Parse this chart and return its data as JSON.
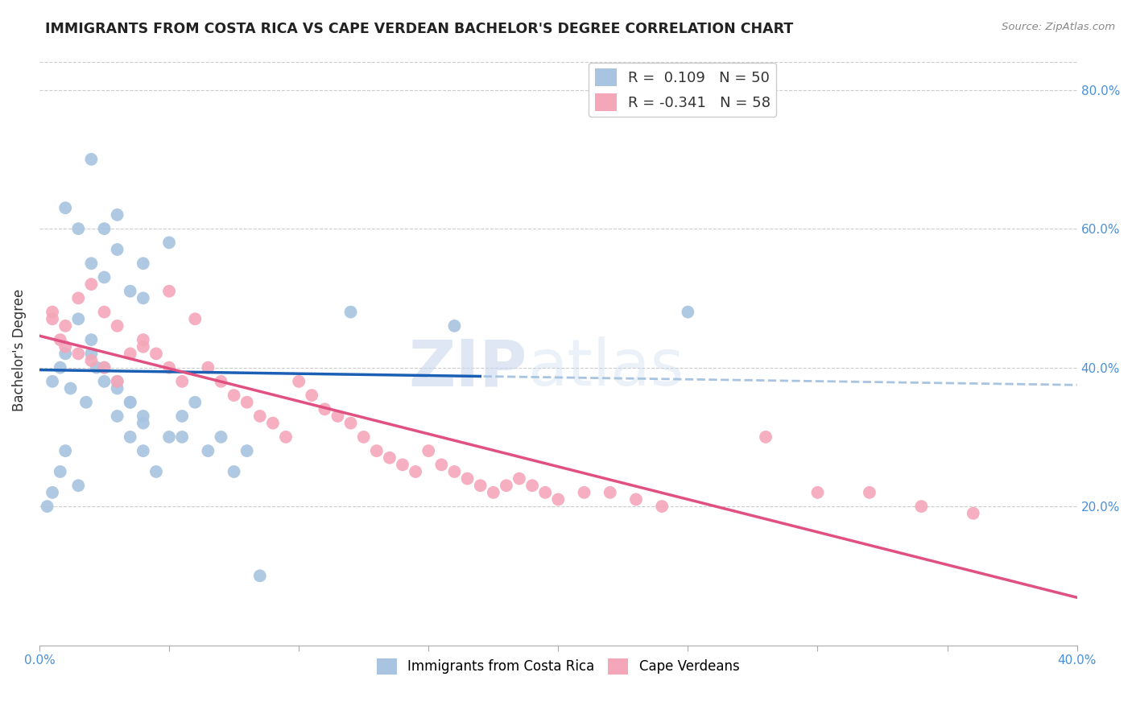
{
  "title": "IMMIGRANTS FROM COSTA RICA VS CAPE VERDEAN BACHELOR'S DEGREE CORRELATION CHART",
  "source": "Source: ZipAtlas.com",
  "ylabel": "Bachelor's Degree",
  "r_costa_rica": 0.109,
  "n_costa_rica": 50,
  "r_cape_verdean": -0.341,
  "n_cape_verdean": 58,
  "color_costa_rica": "#a8c4e0",
  "color_cape_verdean": "#f4a7b9",
  "line_color_costa_rica": "#1a5fb4",
  "line_color_cape_verdean": "#e05080",
  "line_dashed_color": "#a8c4e0",
  "watermark_zip": "ZIP",
  "watermark_atlas": "atlas",
  "xlim": [
    0.0,
    0.4
  ],
  "ylim": [
    0.0,
    0.85
  ],
  "costa_rica_points_x": [
    0.02,
    0.03,
    0.04,
    0.05,
    0.035,
    0.025,
    0.03,
    0.04,
    0.02,
    0.01,
    0.015,
    0.025,
    0.015,
    0.01,
    0.005,
    0.008,
    0.012,
    0.018,
    0.022,
    0.03,
    0.035,
    0.04,
    0.05,
    0.055,
    0.06,
    0.07,
    0.08,
    0.12,
    0.16,
    0.02,
    0.025,
    0.03,
    0.035,
    0.04,
    0.045,
    0.015,
    0.01,
    0.008,
    0.005,
    0.003,
    0.02,
    0.025,
    0.03,
    0.035,
    0.04,
    0.055,
    0.065,
    0.075,
    0.085,
    0.25
  ],
  "costa_rica_points_y": [
    0.7,
    0.62,
    0.55,
    0.58,
    0.51,
    0.6,
    0.57,
    0.5,
    0.55,
    0.63,
    0.6,
    0.53,
    0.47,
    0.42,
    0.38,
    0.4,
    0.37,
    0.35,
    0.4,
    0.38,
    0.35,
    0.32,
    0.3,
    0.33,
    0.35,
    0.3,
    0.28,
    0.48,
    0.46,
    0.42,
    0.38,
    0.33,
    0.3,
    0.28,
    0.25,
    0.23,
    0.28,
    0.25,
    0.22,
    0.2,
    0.44,
    0.4,
    0.37,
    0.35,
    0.33,
    0.3,
    0.28,
    0.25,
    0.1,
    0.48
  ],
  "cape_verdean_points_x": [
    0.005,
    0.008,
    0.01,
    0.015,
    0.02,
    0.025,
    0.03,
    0.035,
    0.04,
    0.045,
    0.05,
    0.055,
    0.06,
    0.065,
    0.07,
    0.075,
    0.08,
    0.085,
    0.09,
    0.095,
    0.1,
    0.105,
    0.11,
    0.115,
    0.12,
    0.125,
    0.13,
    0.135,
    0.14,
    0.145,
    0.15,
    0.155,
    0.16,
    0.165,
    0.17,
    0.175,
    0.18,
    0.185,
    0.19,
    0.195,
    0.2,
    0.21,
    0.22,
    0.23,
    0.24,
    0.28,
    0.3,
    0.32,
    0.34,
    0.36,
    0.005,
    0.01,
    0.015,
    0.02,
    0.025,
    0.03,
    0.04,
    0.05
  ],
  "cape_verdean_points_y": [
    0.47,
    0.44,
    0.43,
    0.42,
    0.41,
    0.4,
    0.38,
    0.42,
    0.44,
    0.42,
    0.4,
    0.38,
    0.47,
    0.4,
    0.38,
    0.36,
    0.35,
    0.33,
    0.32,
    0.3,
    0.38,
    0.36,
    0.34,
    0.33,
    0.32,
    0.3,
    0.28,
    0.27,
    0.26,
    0.25,
    0.28,
    0.26,
    0.25,
    0.24,
    0.23,
    0.22,
    0.23,
    0.24,
    0.23,
    0.22,
    0.21,
    0.22,
    0.22,
    0.21,
    0.2,
    0.3,
    0.22,
    0.22,
    0.2,
    0.19,
    0.48,
    0.46,
    0.5,
    0.52,
    0.48,
    0.46,
    0.43,
    0.51
  ]
}
